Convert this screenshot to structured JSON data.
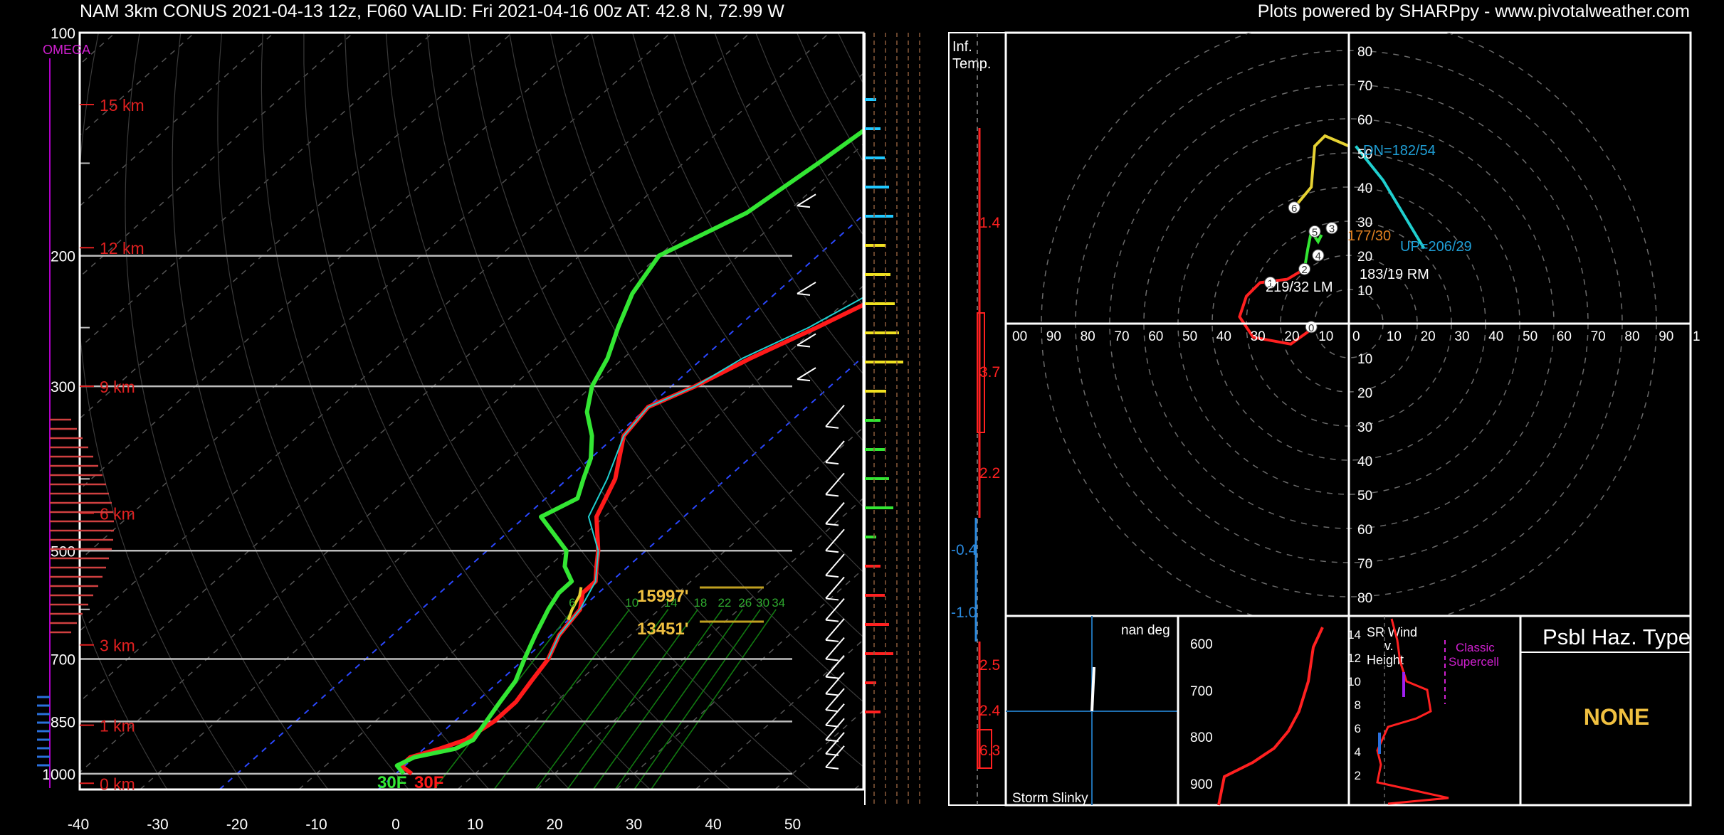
{
  "header": {
    "title": "NAM 3km CONUS 2021-04-13 12z, F060  VALID: Fri 2021-04-16 00z  AT: 42.8 N, 72.99 W",
    "credit": "Plots powered by SHARPpy - www.pivotalweather.com"
  },
  "chart_data": [
    {
      "type": "line",
      "subtype": "skew-t",
      "ylabel_left": "OMEGA",
      "pressure_ticks": [
        100,
        200,
        300,
        500,
        700,
        850,
        1000
      ],
      "temperature_ticks": [
        -40,
        -30,
        -20,
        -10,
        0,
        10,
        20,
        30,
        40,
        50
      ],
      "height_labels": [
        "15 km",
        "12 km",
        "9 km",
        "6 km",
        "3 km",
        "1 km",
        "0 km"
      ],
      "mixing_ratio_labels": [
        "6",
        "10",
        "14",
        "18",
        "22",
        "26",
        "30",
        "34"
      ],
      "surface_dewpoint_label": "30F",
      "surface_temp_label": "30F",
      "height_annotations": [
        "15997'",
        "13451'"
      ],
      "series": [
        {
          "name": "",
          "color": "#ff1a1a",
          "pressure": [
            1000,
            975,
            950,
            925,
            900,
            850,
            800,
            750,
            700,
            650,
            600,
            570,
            550,
            525,
            500,
            450,
            400,
            350,
            320,
            300,
            275,
            250,
            225,
            200,
            175,
            150,
            125,
            100
          ],
          "values": [
            2,
            -0.5,
            -0.5,
            2,
            4,
            5,
            5,
            4,
            3,
            1,
            0,
            -2,
            -2,
            -4,
            -6,
            -11,
            -14,
            -19,
            -20,
            -17,
            -14,
            -10,
            -6,
            -3,
            -2,
            0,
            1,
            4
          ]
        },
        {
          "name": "",
          "color": "#33e633",
          "pressure": [
            1000,
            975,
            950,
            925,
            900,
            850,
            800,
            750,
            700,
            650,
            600,
            570,
            550,
            525,
            500,
            450,
            425,
            400,
            375,
            350,
            325,
            300,
            275,
            250,
            225,
            200,
            175,
            150,
            125,
            100
          ],
          "values": [
            1,
            -1,
            0,
            4,
            5,
            4,
            3,
            2,
            0,
            -2,
            -4,
            -5,
            -5,
            -8,
            -10,
            -18,
            -16,
            -18,
            -20,
            -23,
            -27,
            -30,
            -32,
            -35,
            -38,
            -40,
            -35,
            -33,
            -31,
            -28
          ]
        },
        {
          "name": "",
          "color": "#20d0d0",
          "pressure": [
            700,
            650,
            600,
            550,
            500,
            450,
            400,
            350,
            320,
            300,
            275,
            250,
            225,
            200,
            175,
            150,
            125,
            100
          ],
          "values": [
            3,
            1,
            0,
            -2,
            -6,
            -12,
            -15,
            -19,
            -20,
            -17,
            -15,
            -11,
            -8,
            -5,
            -3,
            -1,
            0,
            3
          ]
        },
        {
          "name": "",
          "color": "#e6d233",
          "pressure": [
            620,
            600,
            575,
            560
          ],
          "values": [
            0,
            -1,
            -2,
            -3
          ]
        }
      ]
    },
    {
      "type": "line",
      "subtype": "hodograph",
      "rings": [
        10,
        20,
        30,
        40,
        50,
        60,
        70,
        80,
        90
      ],
      "ring_label_values": [
        "80",
        "70",
        "60",
        "50",
        "40",
        "30",
        "20",
        "10"
      ],
      "x_labels": [
        "00",
        "90",
        "80",
        "70",
        "60",
        "50",
        "40",
        "30",
        "20",
        "10",
        "0",
        "10",
        "20",
        "30",
        "40",
        "50",
        "60",
        "70",
        "80",
        "90",
        "1"
      ],
      "annotations": [
        "DN=182/54",
        "UP=206/29",
        "183/19 RM",
        "219/32 LM",
        "177/30"
      ],
      "markers": [
        "0",
        "1",
        "2",
        "3",
        "4",
        "5",
        "6"
      ]
    },
    {
      "type": "line",
      "subtype": "inferred-temperature-advection",
      "title": "Inf. Temp.",
      "values": [
        "1.4",
        "3.7",
        "2.2",
        "-0.4",
        "-1.0",
        "2.5",
        "2.4",
        "6.3"
      ]
    },
    {
      "type": "line",
      "subtype": "storm-slinky",
      "title": "Storm Slinky",
      "label": "nan deg"
    },
    {
      "type": "line",
      "subtype": "theta-e",
      "pressure_ticks": [
        600,
        700,
        800,
        900
      ]
    },
    {
      "type": "line",
      "subtype": "sr-wind-vs-height",
      "title": "SR Wind v. Height",
      "height_ticks": [
        14,
        12,
        10,
        8,
        6,
        4,
        2
      ],
      "label": "Classic Supercell"
    }
  ],
  "hazard": {
    "title": "Psbl Haz. Type",
    "value": "NONE"
  },
  "colors": {
    "temp": "#ff1a1a",
    "dewpoint": "#33e633",
    "wetbulb": "#20d0d0",
    "parcel": "#e6d233",
    "accent": "#0099dd"
  }
}
